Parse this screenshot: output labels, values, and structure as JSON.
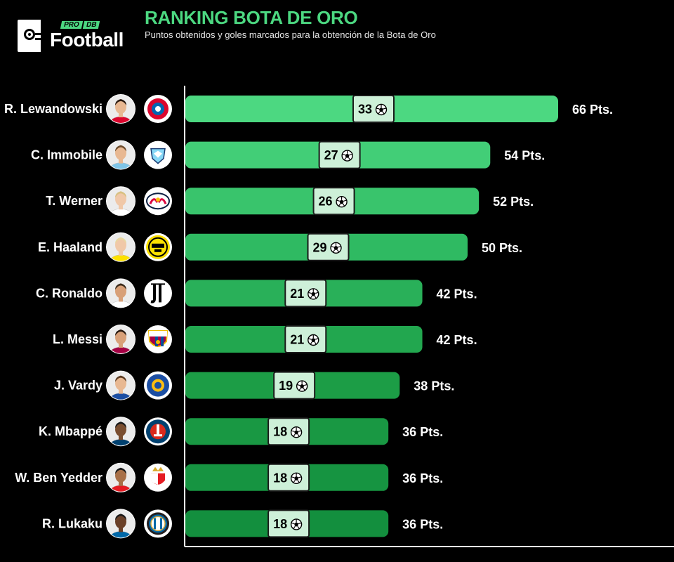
{
  "brand": {
    "tag_left": "PRO",
    "tag_right": "DB",
    "word": "Football"
  },
  "header": {
    "title": "RANKING BOTA DE ORO",
    "subtitle": "Puntos obtenidos y goles marcados para la obtención de la Bota de Oro"
  },
  "chart_data": {
    "type": "bar",
    "orientation": "horizontal",
    "title": "RANKING BOTA DE ORO",
    "subtitle": "Puntos obtenidos y goles marcados para la obtención de la Bota de Oro",
    "categories": [
      "R. Lewandowski",
      "C. Immobile",
      "T. Werner",
      "E. Haaland",
      "C. Ronaldo",
      "L. Messi",
      "J. Vardy",
      "K. Mbappé",
      "W. Ben Yedder",
      "R. Lukaku"
    ],
    "points": [
      66,
      54,
      52,
      50,
      42,
      42,
      38,
      36,
      36,
      36
    ],
    "points_labels": [
      "66 Pts.",
      "54 Pts.",
      "52 Pts.",
      "50 Pts.",
      "42 Pts.",
      "42 Pts.",
      "38 Pts.",
      "36 Pts.",
      "36 Pts.",
      "36 Pts."
    ],
    "goals": [
      33,
      27,
      26,
      29,
      21,
      21,
      19,
      18,
      18,
      18
    ],
    "clubs": [
      "bayern-crest",
      "lazio-crest",
      "leipzig-crest",
      "dortmund-crest",
      "juventus-crest",
      "barcelona-crest",
      "leicester-crest",
      "psg-crest",
      "monaco-crest",
      "inter-crest"
    ],
    "xlim": [
      0,
      66
    ],
    "grid": false,
    "colors": {
      "bar_gradient": [
        "#4cd881",
        "#2fba62",
        "#1c9d46",
        "#138f3e"
      ],
      "goal_badge": "#cdf0d8",
      "title": "#4cd881"
    },
    "icons": {
      "goal": "soccer-ball-icon",
      "player": "player-avatar"
    }
  }
}
